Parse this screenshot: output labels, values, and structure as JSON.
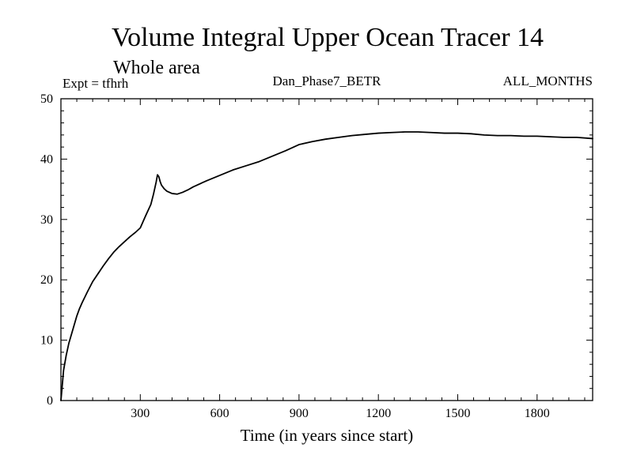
{
  "chart_data": {
    "type": "line",
    "title": "Volume Integral Upper Ocean Tracer 14",
    "subtitle": "Whole area",
    "expt_label": "Expt = tfhrh",
    "run_label": "Dan_Phase7_BETR",
    "months_label": "ALL_MONTHS",
    "xlabel": "Time (in years since start)",
    "ylabel": "",
    "xlim": [
      0,
      2010
    ],
    "ylim": [
      0,
      50
    ],
    "xticks": [
      300,
      600,
      900,
      1200,
      1500,
      1800
    ],
    "yticks": [
      0,
      10,
      20,
      30,
      40,
      50
    ],
    "grid": false,
    "series": [
      {
        "name": "Upper Ocean Tracer 14",
        "color": "#000000",
        "x": [
          0,
          5,
          10,
          20,
          30,
          40,
          50,
          60,
          70,
          80,
          90,
          100,
          120,
          140,
          160,
          180,
          200,
          220,
          240,
          260,
          280,
          300,
          320,
          340,
          350,
          360,
          365,
          370,
          375,
          380,
          390,
          400,
          420,
          440,
          460,
          480,
          500,
          550,
          600,
          650,
          700,
          750,
          800,
          850,
          900,
          950,
          1000,
          1050,
          1100,
          1150,
          1200,
          1250,
          1300,
          1350,
          1400,
          1450,
          1500,
          1550,
          1600,
          1650,
          1700,
          1750,
          1800,
          1850,
          1900,
          1950,
          2010
        ],
        "values": [
          0,
          2.5,
          5,
          7.5,
          9.5,
          11,
          12.5,
          14,
          15.2,
          16.2,
          17.1,
          18,
          19.7,
          21,
          22.3,
          23.5,
          24.6,
          25.5,
          26.3,
          27.1,
          27.8,
          28.6,
          30.6,
          32.5,
          34.2,
          36.2,
          37.4,
          37.1,
          36.3,
          35.7,
          35.1,
          34.7,
          34.3,
          34.2,
          34.5,
          34.9,
          35.4,
          36.4,
          37.3,
          38.2,
          38.9,
          39.6,
          40.5,
          41.4,
          42.4,
          42.9,
          43.3,
          43.6,
          43.9,
          44.1,
          44.3,
          44.4,
          44.5,
          44.5,
          44.4,
          44.3,
          44.3,
          44.2,
          44.0,
          43.9,
          43.9,
          43.8,
          43.8,
          43.7,
          43.6,
          43.6,
          43.4
        ]
      }
    ]
  }
}
